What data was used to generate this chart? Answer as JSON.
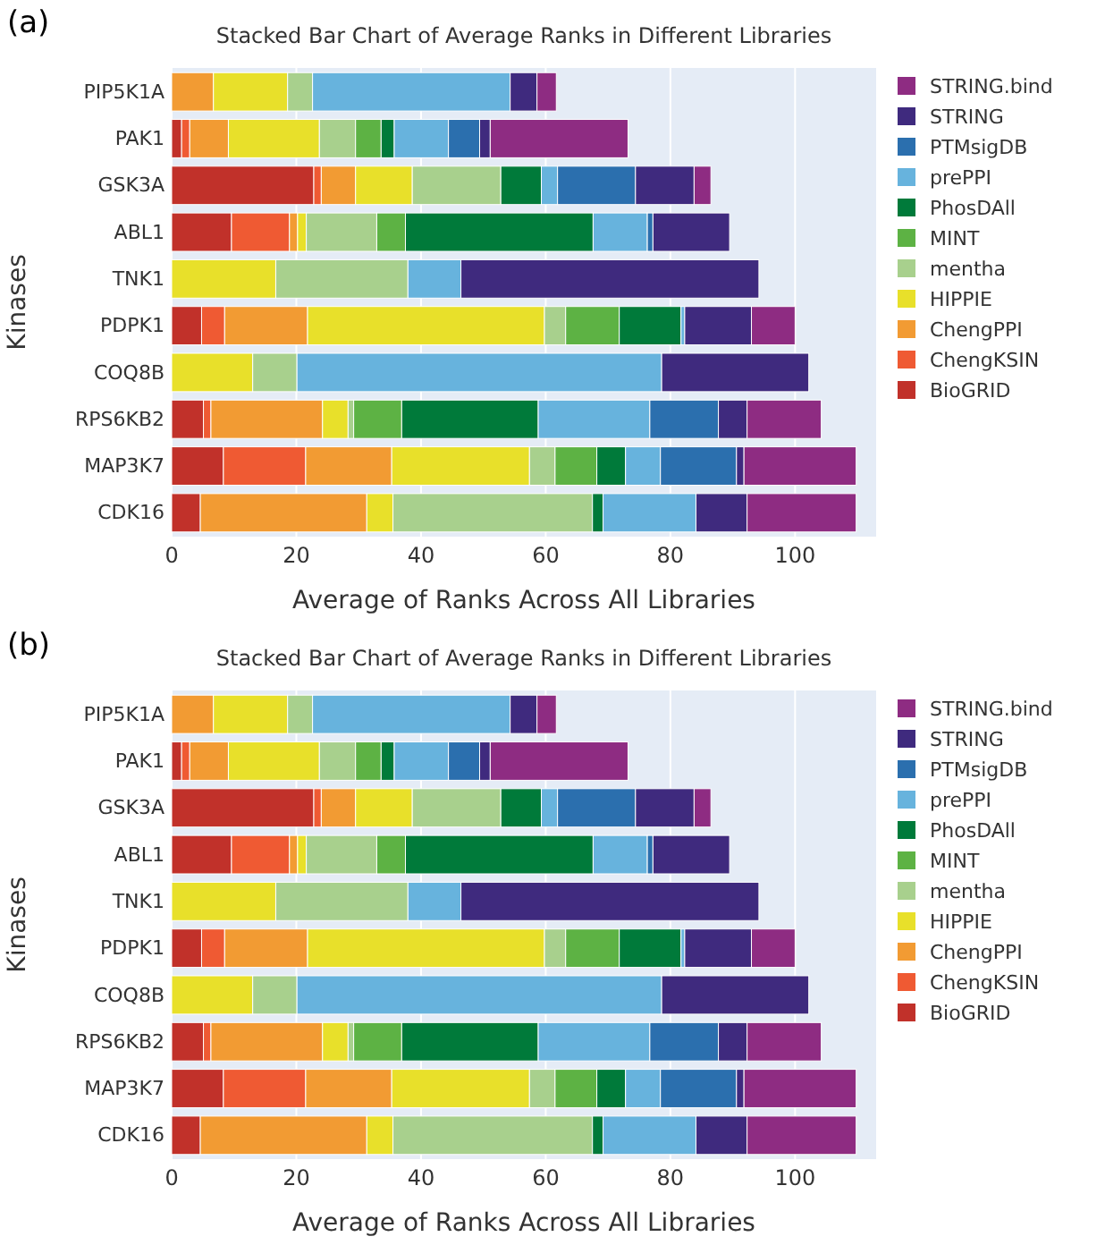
{
  "chart_data": [
    {
      "type": "bar",
      "orientation": "horizontal",
      "stacked": true,
      "title": "Stacked Bar Chart of Average Ranks in Different Libraries",
      "xlabel": "Average of Ranks Across All Libraries",
      "ylabel": "Kinases",
      "annotations": [
        "(a)"
      ],
      "grid": "x",
      "legend": "right",
      "xlim": [
        0,
        113
      ],
      "xticks": [
        0,
        20,
        40,
        60,
        80,
        100
      ],
      "categories": [
        "PIP5K1A",
        "PAK1",
        "GSK3A",
        "ABL1",
        "TNK1",
        "PDPK1",
        "COQ8B",
        "RPS6KB2",
        "MAP3K7",
        "CDK16"
      ],
      "series": [
        {
          "name": "BioGRID",
          "color": "#c1312a",
          "values": [
            0,
            1.6,
            22.8,
            9.6,
            0,
            4.8,
            0,
            5.1,
            8.3,
            4.6
          ]
        },
        {
          "name": "ChengKSIN",
          "color": "#ef5a33",
          "values": [
            0,
            1.3,
            1.2,
            9.3,
            0,
            3.7,
            0,
            1.2,
            13.2,
            0
          ]
        },
        {
          "name": "ChengPPI",
          "color": "#f29b33",
          "values": [
            6.7,
            6.2,
            5.5,
            1.3,
            0,
            13.3,
            0,
            17.9,
            13.8,
            26.7
          ]
        },
        {
          "name": "HIPPIE",
          "color": "#e8e02a",
          "values": [
            11.9,
            14.6,
            9.1,
            1.4,
            16.7,
            38,
            13,
            4.1,
            22.1,
            4.2
          ]
        },
        {
          "name": "mentha",
          "color": "#a8d08d",
          "values": [
            4,
            5.8,
            14.2,
            11.3,
            21.2,
            3.4,
            7.1,
            0.9,
            4.1,
            32
          ]
        },
        {
          "name": "MINT",
          "color": "#5db244",
          "values": [
            0,
            4.1,
            0,
            4.6,
            0,
            8.6,
            0,
            7.7,
            6.7,
            0
          ]
        },
        {
          "name": "PhosDAll",
          "color": "#007a3a",
          "values": [
            0,
            2.1,
            6.5,
            30.1,
            0,
            9.9,
            0,
            21.9,
            4.6,
            1.7
          ]
        },
        {
          "name": "prePPI",
          "color": "#67b3dd",
          "values": [
            31.7,
            8.7,
            2.6,
            8.7,
            8.5,
            0.6,
            58.5,
            17.9,
            5.6,
            14.9
          ]
        },
        {
          "name": "PTMsigDB",
          "color": "#2b6fae",
          "values": [
            0,
            5,
            12.5,
            0.9,
            0,
            0,
            0,
            11,
            12.2,
            0
          ]
        },
        {
          "name": "STRING",
          "color": "#3f2a7e",
          "values": [
            4.3,
            1.7,
            9.4,
            12.3,
            47.8,
            10.7,
            23.6,
            4.6,
            1.2,
            8.2
          ]
        },
        {
          "name": "STRING.bind",
          "color": "#8e2c82",
          "values": [
            3.1,
            22.1,
            2.7,
            0,
            0,
            7,
            0,
            11.9,
            18,
            17.5
          ]
        }
      ]
    },
    {
      "type": "bar",
      "orientation": "horizontal",
      "stacked": true,
      "title": "Stacked Bar Chart of Average Ranks in Different Libraries",
      "xlabel": "Average of Ranks Across All Libraries",
      "ylabel": "Kinases",
      "annotations": [
        "(b)"
      ],
      "grid": "x",
      "legend": "right",
      "xlim": [
        0,
        113
      ],
      "xticks": [
        0,
        20,
        40,
        60,
        80,
        100
      ],
      "categories": [
        "PIP5K1A",
        "PAK1",
        "GSK3A",
        "ABL1",
        "TNK1",
        "PDPK1",
        "COQ8B",
        "RPS6KB2",
        "MAP3K7",
        "CDK16"
      ],
      "series": [
        {
          "name": "BioGRID",
          "color": "#c1312a",
          "values": [
            0,
            1.6,
            22.8,
            9.6,
            0,
            4.8,
            0,
            5.1,
            8.3,
            4.6
          ]
        },
        {
          "name": "ChengKSIN",
          "color": "#ef5a33",
          "values": [
            0,
            1.3,
            1.2,
            9.3,
            0,
            3.7,
            0,
            1.2,
            13.2,
            0
          ]
        },
        {
          "name": "ChengPPI",
          "color": "#f29b33",
          "values": [
            6.7,
            6.2,
            5.5,
            1.3,
            0,
            13.3,
            0,
            17.9,
            13.8,
            26.7
          ]
        },
        {
          "name": "HIPPIE",
          "color": "#e8e02a",
          "values": [
            11.9,
            14.6,
            9.1,
            1.4,
            16.7,
            38,
            13,
            4.1,
            22.1,
            4.2
          ]
        },
        {
          "name": "mentha",
          "color": "#a8d08d",
          "values": [
            4,
            5.8,
            14.2,
            11.3,
            21.2,
            3.4,
            7.1,
            0.9,
            4.1,
            32
          ]
        },
        {
          "name": "MINT",
          "color": "#5db244",
          "values": [
            0,
            4.1,
            0,
            4.6,
            0,
            8.6,
            0,
            7.7,
            6.7,
            0
          ]
        },
        {
          "name": "PhosDAll",
          "color": "#007a3a",
          "values": [
            0,
            2.1,
            6.5,
            30.1,
            0,
            9.9,
            0,
            21.9,
            4.6,
            1.7
          ]
        },
        {
          "name": "prePPI",
          "color": "#67b3dd",
          "values": [
            31.7,
            8.7,
            2.6,
            8.7,
            8.5,
            0.6,
            58.5,
            17.9,
            5.6,
            14.9
          ]
        },
        {
          "name": "PTMsigDB",
          "color": "#2b6fae",
          "values": [
            0,
            5,
            12.5,
            0.9,
            0,
            0,
            0,
            11,
            12.2,
            0
          ]
        },
        {
          "name": "STRING",
          "color": "#3f2a7e",
          "values": [
            4.3,
            1.7,
            9.4,
            12.3,
            47.8,
            10.7,
            23.6,
            4.6,
            1.2,
            8.2
          ]
        },
        {
          "name": "STRING.bind",
          "color": "#8e2c82",
          "values": [
            3.1,
            22.1,
            2.7,
            0,
            0,
            7,
            0,
            11.9,
            18,
            17.5
          ]
        }
      ]
    }
  ]
}
